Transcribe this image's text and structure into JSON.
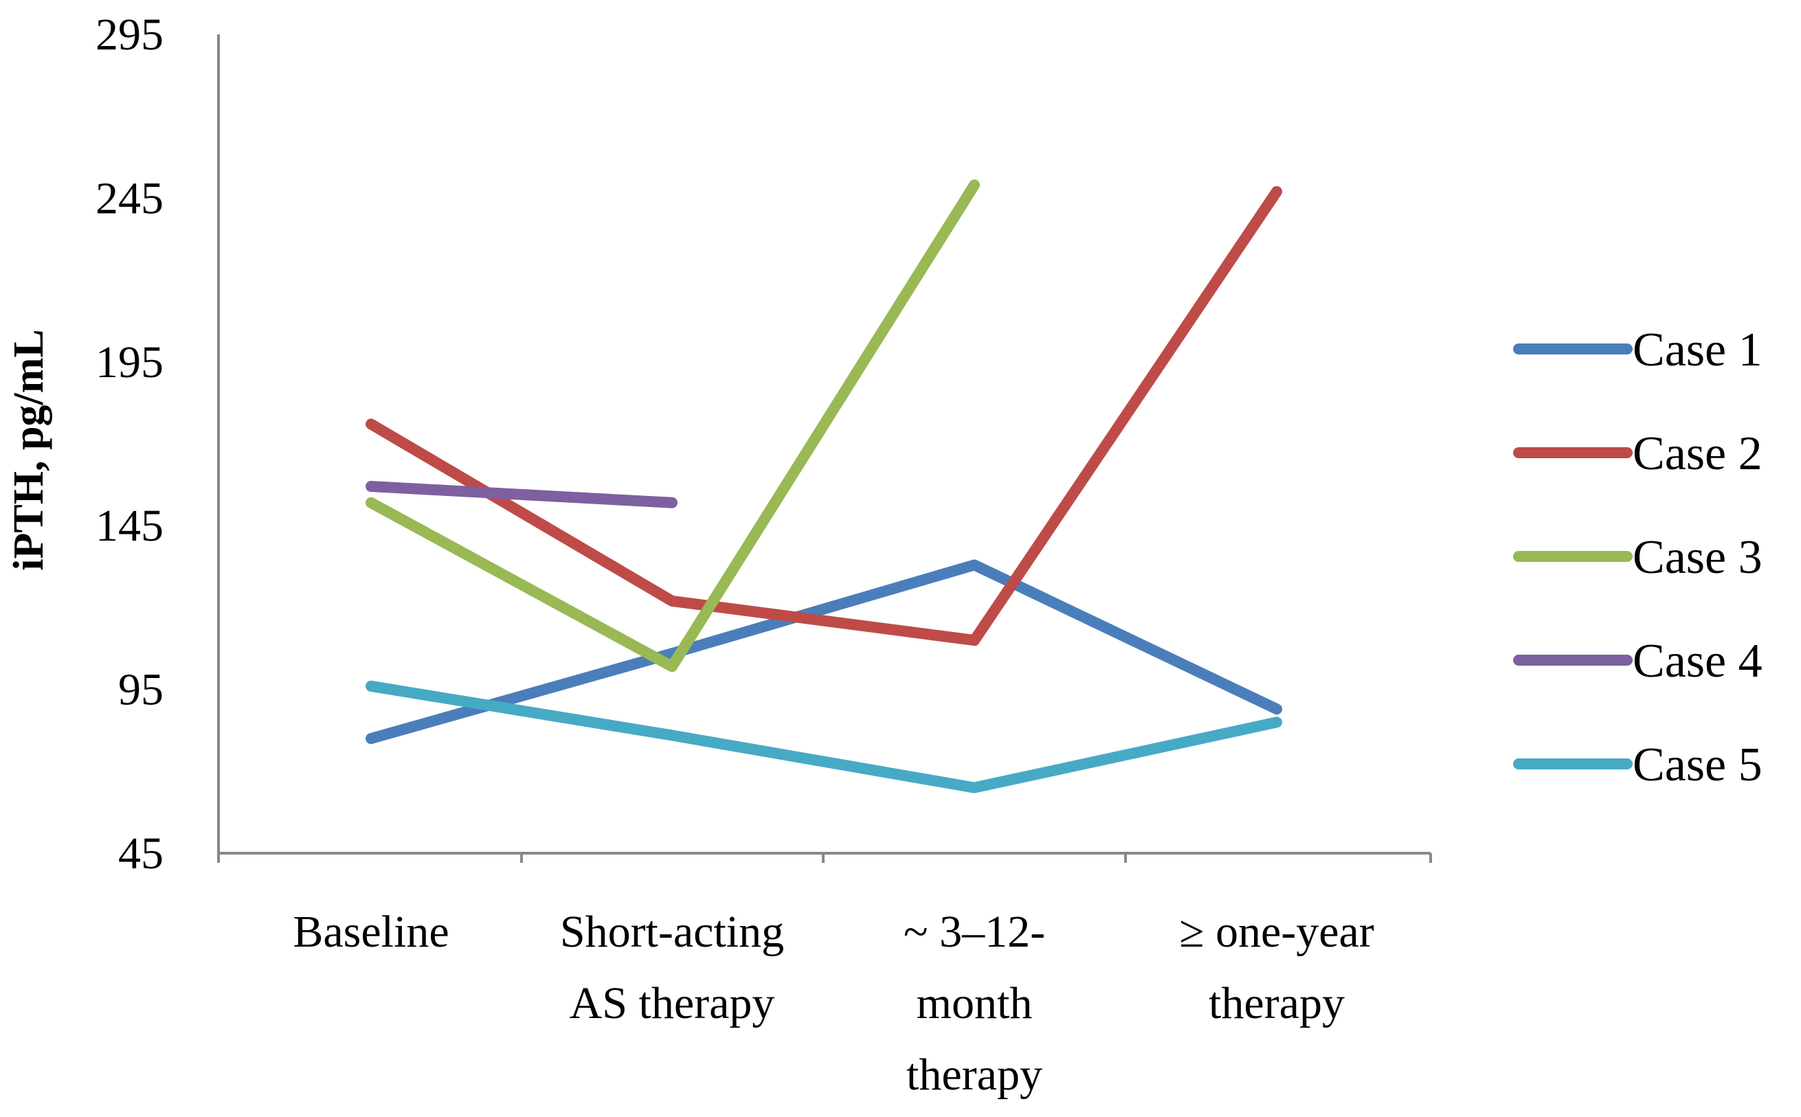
{
  "chart_data": {
    "type": "line",
    "title": "",
    "xlabel": "",
    "ylabel": "iPTH, pg/mL",
    "ylim": [
      45,
      295
    ],
    "yticks": [
      "295",
      "245",
      "195",
      "145",
      "95",
      "45"
    ],
    "categories": [
      [
        "Baseline"
      ],
      [
        "Short-acting",
        "AS therapy"
      ],
      [
        "~ 3–12-",
        "month",
        "therapy"
      ],
      [
        "≥ one-year",
        "therapy"
      ]
    ],
    "legend_position": "right",
    "grid": false,
    "series": [
      {
        "name": "Case 1",
        "color": "#4a7ebb",
        "values": [
          80,
          106,
          133,
          89
        ]
      },
      {
        "name": "Case 2",
        "color": "#be4b48",
        "values": [
          176,
          122,
          110,
          247
        ]
      },
      {
        "name": "Case 3",
        "color": "#98b954",
        "values": [
          152,
          102,
          249,
          null
        ]
      },
      {
        "name": "Case 4",
        "color": "#7d60a0",
        "values": [
          157,
          152,
          null,
          null
        ]
      },
      {
        "name": "Case 5",
        "color": "#46aac5",
        "values": [
          96,
          81,
          65,
          85
        ]
      }
    ]
  }
}
